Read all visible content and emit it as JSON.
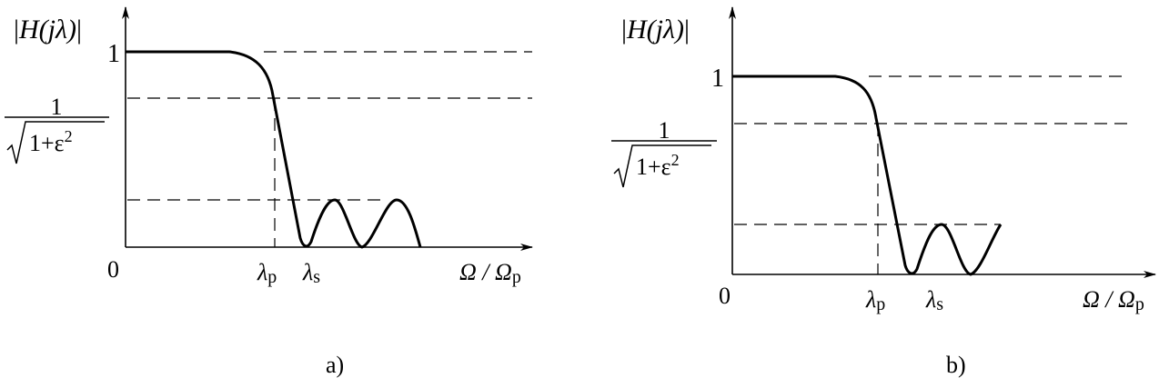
{
  "panels": [
    {
      "id": "a",
      "caption": "a)",
      "y_label": "|H(jλ)|",
      "y_label_inner": "H(jλ)",
      "tick_one": "1",
      "tick_ripple_num": "1",
      "tick_ripple_den": "1+ε",
      "tick_ripple_exp": "2",
      "origin": "0",
      "x_ticks": [
        {
          "sym": "λ",
          "sub": "p"
        },
        {
          "sym": "λ",
          "sub": "s"
        }
      ],
      "x_label": "Ω / Ω",
      "x_label_sub": "p",
      "stopband_ripple_peaks": 2
    },
    {
      "id": "b",
      "caption": "b)",
      "y_label": "|H(jλ)|",
      "y_label_inner": "H(jλ)",
      "tick_one": "1",
      "tick_ripple_num": "1",
      "tick_ripple_den": "1+ε",
      "tick_ripple_exp": "2",
      "origin": "0",
      "x_ticks": [
        {
          "sym": "λ",
          "sub": "p"
        },
        {
          "sym": "λ",
          "sub": "s"
        }
      ],
      "x_label": "Ω / Ω",
      "x_label_sub": "p",
      "stopband_ripple_peaks": 1
    }
  ]
}
